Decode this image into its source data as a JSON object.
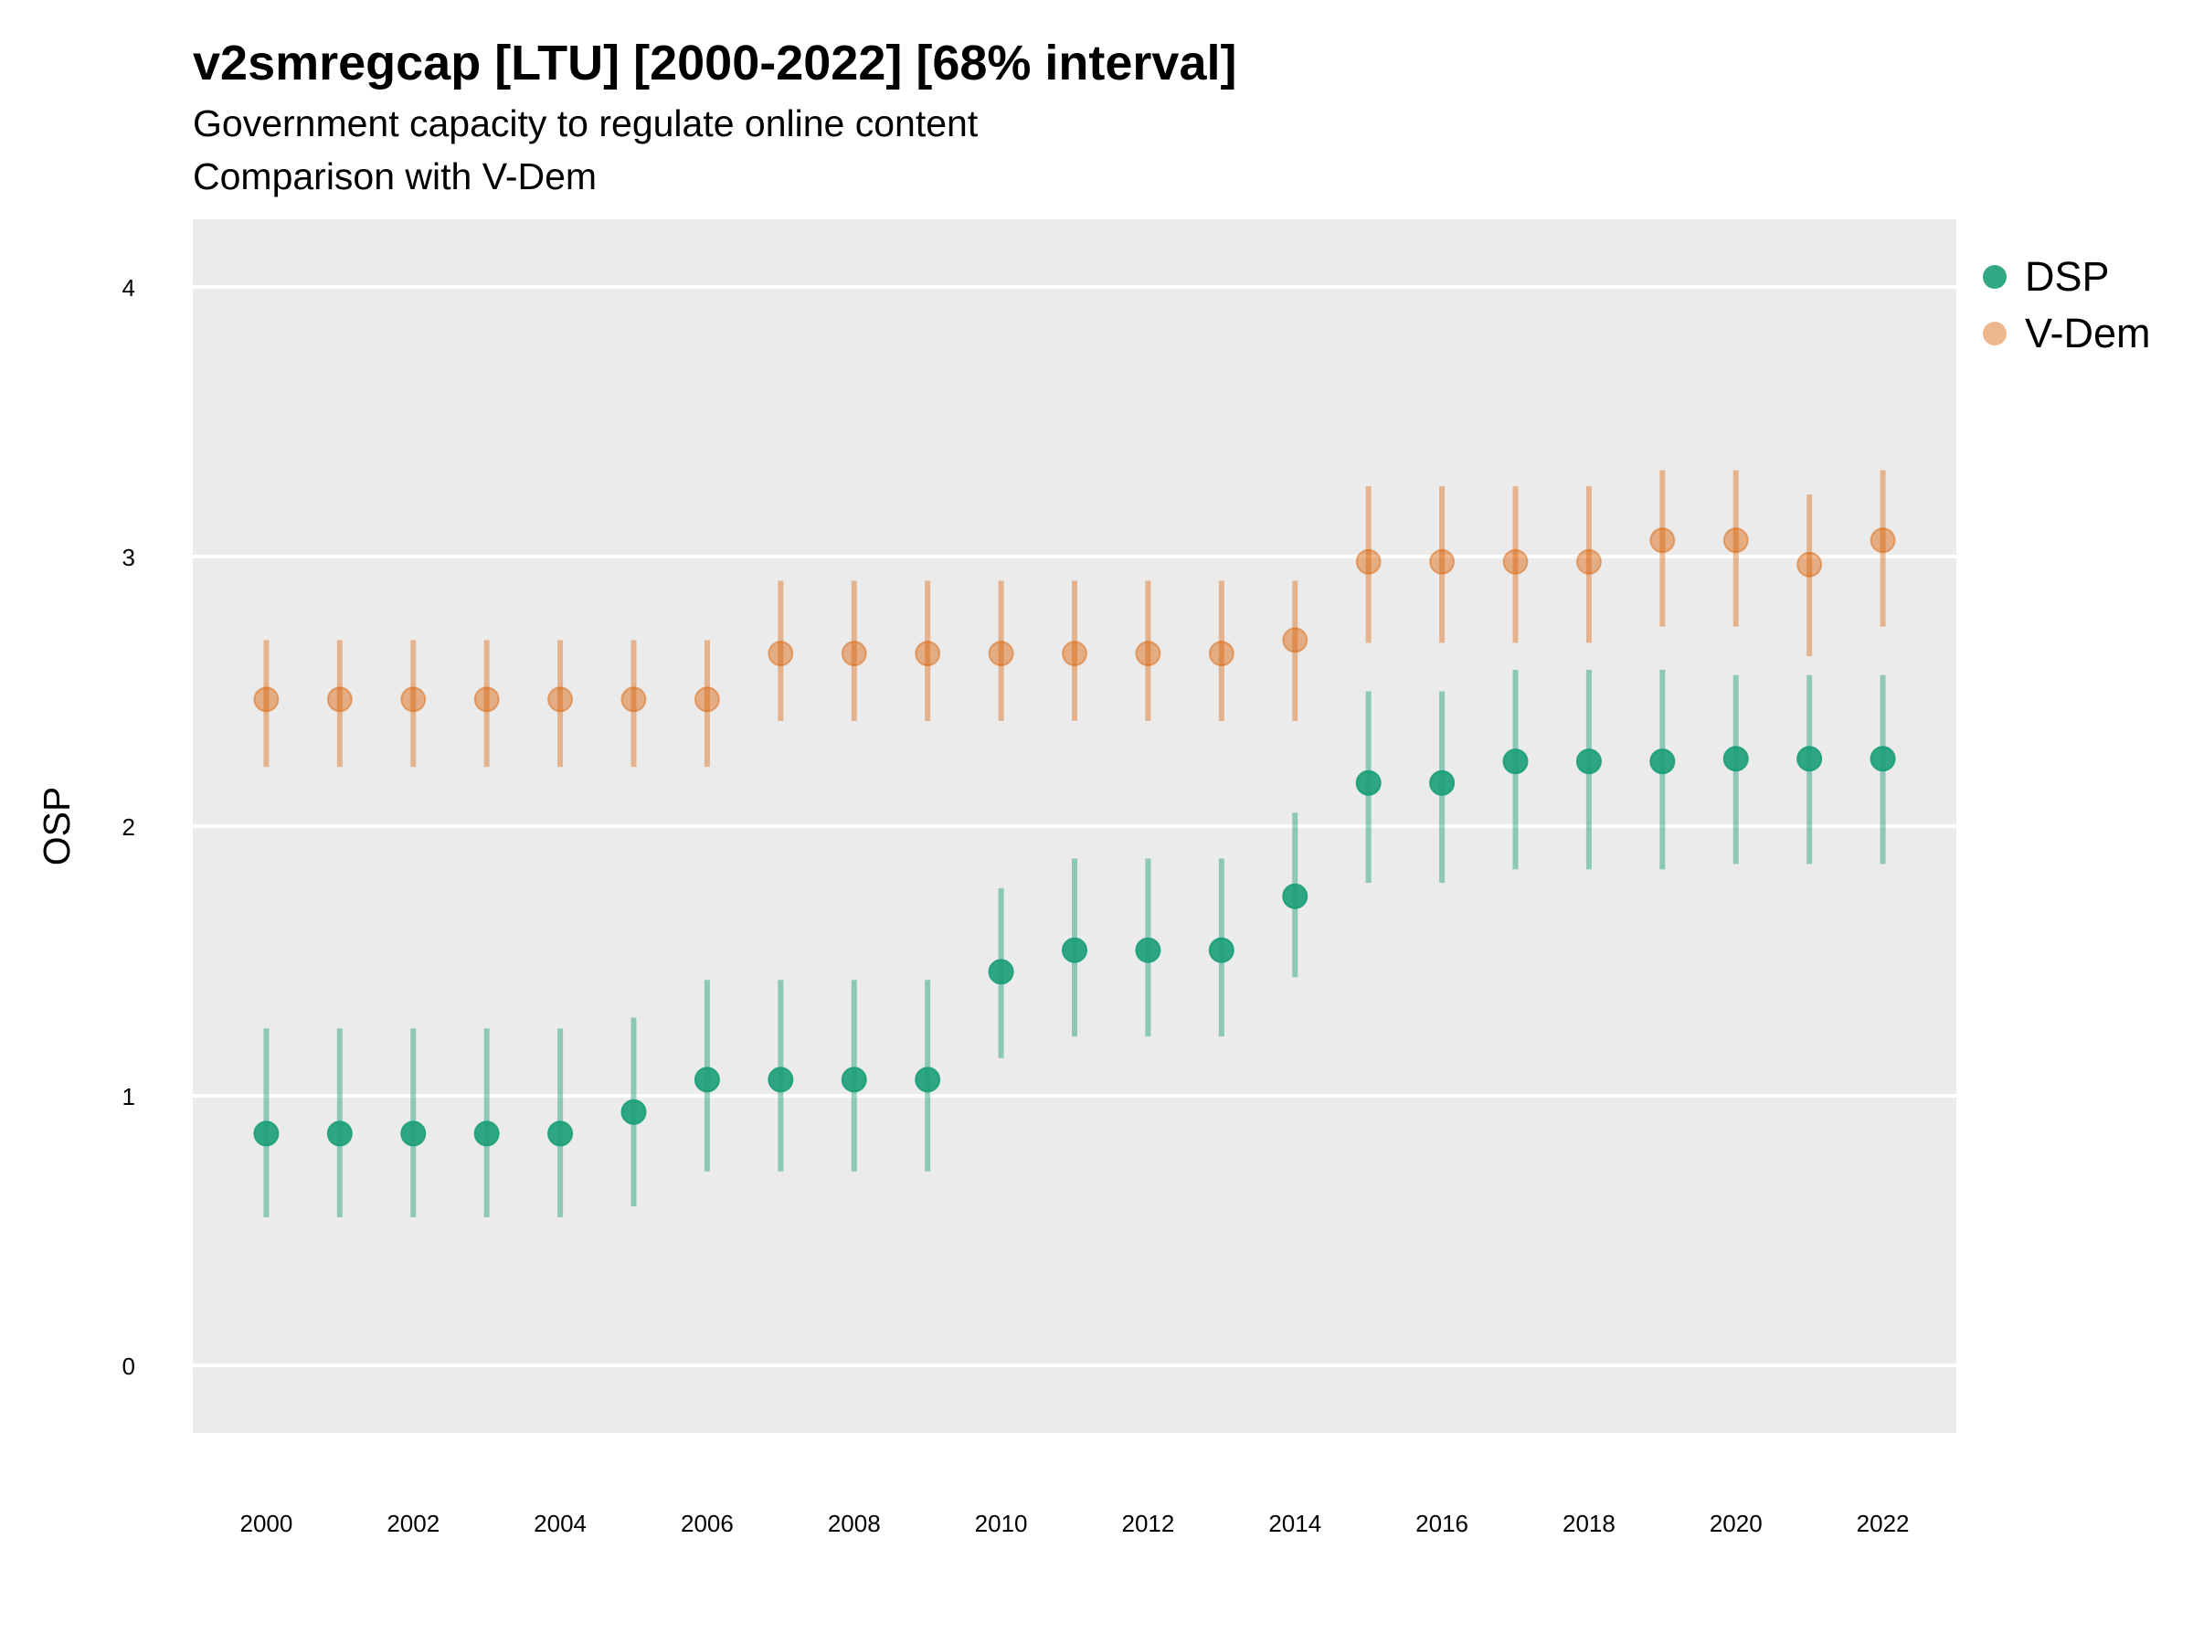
{
  "chart_data": {
    "type": "scatter",
    "title": "v2smregcap [LTU] [2000-2022] [68% interval]",
    "subtitle_lines": [
      "Government capacity to regulate online content",
      "Comparison with V-Dem"
    ],
    "xlabel": "",
    "ylabel": "OSP",
    "xlim": [
      1999,
      2023
    ],
    "ylim": [
      -0.25,
      4.25
    ],
    "x_ticks": [
      "2000",
      "2002",
      "2004",
      "2006",
      "2008",
      "2010",
      "2012",
      "2014",
      "2016",
      "2018",
      "2020",
      "2022"
    ],
    "y_ticks": [
      "0",
      "1",
      "2",
      "3",
      "4"
    ],
    "grid": true,
    "legend_position": "right",
    "x": [
      2000,
      2001,
      2002,
      2003,
      2004,
      2005,
      2006,
      2007,
      2008,
      2009,
      2010,
      2011,
      2012,
      2013,
      2014,
      2015,
      2016,
      2017,
      2018,
      2019,
      2020,
      2021,
      2022
    ],
    "series": [
      {
        "name": "DSP",
        "color": "#1b9e77",
        "values": [
          0.86,
          0.86,
          0.86,
          0.86,
          0.86,
          0.94,
          1.06,
          1.06,
          1.06,
          1.06,
          1.46,
          1.54,
          1.54,
          1.54,
          1.74,
          2.16,
          2.16,
          2.24,
          2.24,
          2.24,
          2.25,
          2.25,
          2.25
        ],
        "lower": [
          0.55,
          0.55,
          0.55,
          0.55,
          0.55,
          0.59,
          0.72,
          0.72,
          0.72,
          0.72,
          1.14,
          1.22,
          1.22,
          1.22,
          1.44,
          1.79,
          1.79,
          1.84,
          1.84,
          1.84,
          1.86,
          1.86,
          1.86
        ],
        "upper": [
          1.25,
          1.25,
          1.25,
          1.25,
          1.25,
          1.29,
          1.43,
          1.43,
          1.43,
          1.43,
          1.77,
          1.88,
          1.88,
          1.88,
          2.05,
          2.5,
          2.5,
          2.58,
          2.58,
          2.58,
          2.56,
          2.56,
          2.56
        ]
      },
      {
        "name": "V-Dem",
        "color": "#d95f02",
        "values": [
          2.47,
          2.47,
          2.47,
          2.47,
          2.47,
          2.47,
          2.47,
          2.64,
          2.64,
          2.64,
          2.64,
          2.64,
          2.64,
          2.64,
          2.69,
          2.98,
          2.98,
          2.98,
          2.98,
          3.06,
          3.06,
          2.97,
          3.06
        ],
        "lower": [
          2.22,
          2.22,
          2.22,
          2.22,
          2.22,
          2.22,
          2.22,
          2.39,
          2.39,
          2.39,
          2.39,
          2.39,
          2.39,
          2.39,
          2.39,
          2.68,
          2.68,
          2.68,
          2.68,
          2.74,
          2.74,
          2.63,
          2.74
        ],
        "upper": [
          2.69,
          2.69,
          2.69,
          2.69,
          2.69,
          2.69,
          2.69,
          2.91,
          2.91,
          2.91,
          2.91,
          2.91,
          2.91,
          2.91,
          2.91,
          3.26,
          3.26,
          3.26,
          3.26,
          3.32,
          3.32,
          3.23,
          3.32
        ]
      }
    ]
  }
}
